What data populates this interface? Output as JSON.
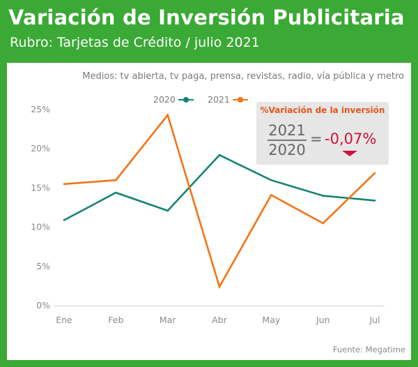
{
  "header": {
    "title": "Variación de Inversión Publicitaria",
    "subtitle": "Rubro: Tarjetas de Crédito / julio 2021"
  },
  "media_note": "Medios: tv abierta, tv paga, prensa, revistas, radio, vía pública y metro",
  "variation": {
    "title": "%Variación de la inversión",
    "numerator": "2021",
    "denominator": "2020",
    "equals": "=",
    "value": "-0,07%"
  },
  "source": "Fuente: Megatime",
  "colors": {
    "background": "#3aa935",
    "series_2020": "#138470",
    "series_2021": "#f47314",
    "negative": "#d0103a"
  },
  "chart_data": {
    "type": "line",
    "categories": [
      "Ene",
      "Feb",
      "Mar",
      "Abr",
      "May",
      "Jun",
      "Jul"
    ],
    "series": [
      {
        "name": "2020",
        "color": "#138470",
        "values": [
          10.9,
          14.4,
          12.1,
          19.2,
          16.0,
          14.0,
          13.4
        ]
      },
      {
        "name": "2021",
        "color": "#f47314",
        "values": [
          15.5,
          16.0,
          24.3,
          2.4,
          14.1,
          10.5,
          16.9
        ]
      }
    ],
    "yticks": [
      "0%",
      "5%",
      "10%",
      "15%",
      "20%",
      "25%"
    ],
    "ylim": [
      0,
      25
    ],
    "grid": false,
    "legend": "top"
  }
}
